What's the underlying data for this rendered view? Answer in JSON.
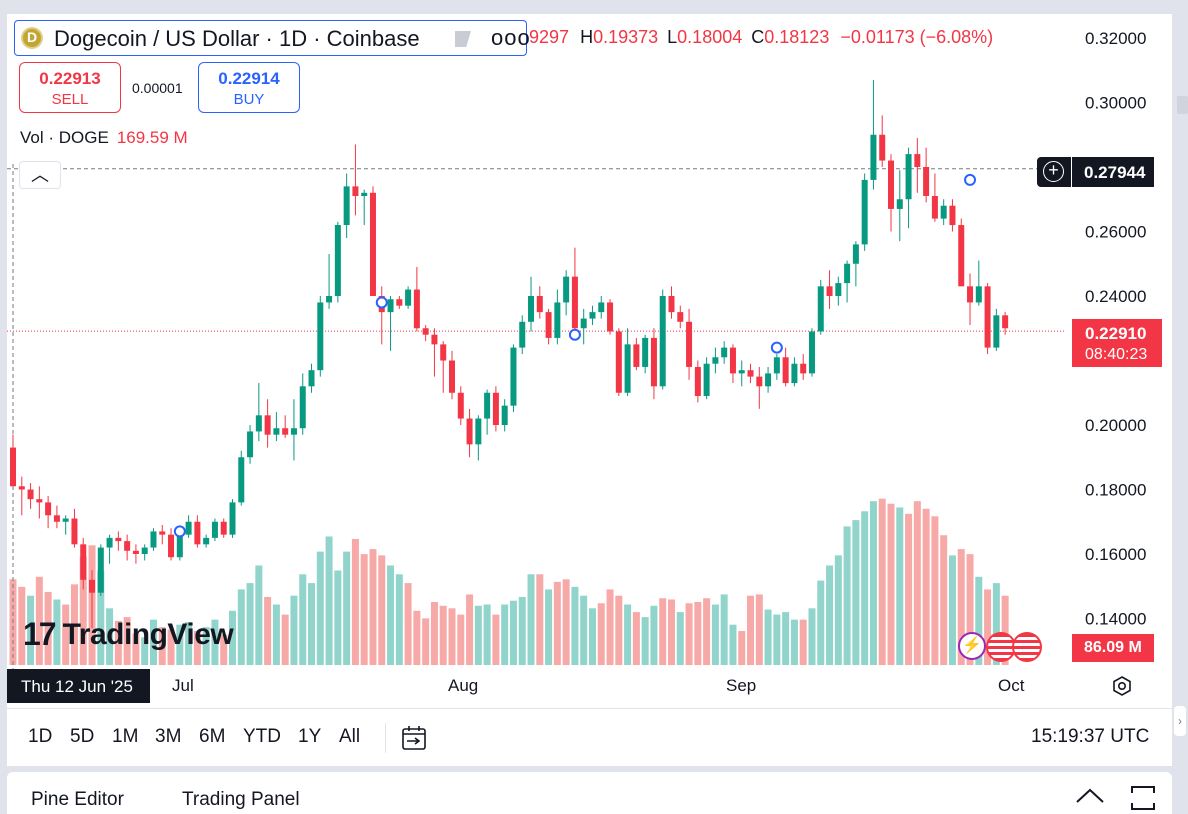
{
  "legend": {
    "symbol_title": "Dogecoin / US Dollar · 1D · Coinbase",
    "more_label": "ooo",
    "ohlc_open_fragment": "9297",
    "ohlc_high_key": "H",
    "ohlc_high": "0.19373",
    "ohlc_low_key": "L",
    "ohlc_low": "0.18004",
    "ohlc_close_key": "C",
    "ohlc_close": "0.18123",
    "change": "−0.01173 (−6.08%)"
  },
  "trade": {
    "sell_price": "0.22913",
    "sell_label": "SELL",
    "spread": "0.00001",
    "buy_price": "0.22914",
    "buy_label": "BUY"
  },
  "volume_legend": {
    "label": "Vol · DOGE",
    "value": "169.59 M"
  },
  "price_axis": {
    "ticks": [
      "0.32000",
      "0.30000",
      "0.26000",
      "0.24000",
      "0.20000",
      "0.18000",
      "0.16000",
      "0.14000"
    ],
    "crosshair_price": "0.27944",
    "last_price": "0.22910",
    "countdown": "08:40:23",
    "volume_tag": "86.09 M"
  },
  "time_axis": {
    "crosshair_date": "Thu 12 Jun '25",
    "labels": [
      "Jul",
      "Aug",
      "Sep",
      "Oct"
    ]
  },
  "watermark": {
    "brand": "TradingView",
    "mark": "17"
  },
  "timeframes": [
    "1D",
    "5D",
    "1M",
    "3M",
    "6M",
    "YTD",
    "1Y",
    "All"
  ],
  "clock": "15:19:37 UTC",
  "bottom_panel": {
    "pine_editor": "Pine Editor",
    "trading_panel": "Trading Panel"
  },
  "colors": {
    "up": "#089981",
    "down": "#f23645",
    "vol_up": "#91d4cc",
    "vol_down": "#f7a9a7",
    "accent": "#2962ff"
  },
  "chart_data": {
    "type": "candlestick",
    "symbol": "Dogecoin / US Dollar",
    "interval": "1D",
    "exchange": "Coinbase",
    "y_range": [
      0.128,
      0.326
    ],
    "candles": [
      {
        "o": 0.193,
        "h": 0.197,
        "l": 0.181,
        "c": 0.181
      },
      {
        "o": 0.181,
        "h": 0.184,
        "l": 0.172,
        "c": 0.18
      },
      {
        "o": 0.18,
        "h": 0.182,
        "l": 0.174,
        "c": 0.177
      },
      {
        "o": 0.177,
        "h": 0.181,
        "l": 0.171,
        "c": 0.176
      },
      {
        "o": 0.176,
        "h": 0.178,
        "l": 0.168,
        "c": 0.172
      },
      {
        "o": 0.172,
        "h": 0.175,
        "l": 0.168,
        "c": 0.17
      },
      {
        "o": 0.17,
        "h": 0.172,
        "l": 0.166,
        "c": 0.171
      },
      {
        "o": 0.171,
        "h": 0.174,
        "l": 0.162,
        "c": 0.163
      },
      {
        "o": 0.163,
        "h": 0.165,
        "l": 0.149,
        "c": 0.152
      },
      {
        "o": 0.152,
        "h": 0.155,
        "l": 0.137,
        "c": 0.148
      },
      {
        "o": 0.148,
        "h": 0.163,
        "l": 0.147,
        "c": 0.162
      },
      {
        "o": 0.162,
        "h": 0.166,
        "l": 0.157,
        "c": 0.165
      },
      {
        "o": 0.165,
        "h": 0.167,
        "l": 0.161,
        "c": 0.164
      },
      {
        "o": 0.164,
        "h": 0.166,
        "l": 0.158,
        "c": 0.161
      },
      {
        "o": 0.161,
        "h": 0.163,
        "l": 0.157,
        "c": 0.16
      },
      {
        "o": 0.16,
        "h": 0.163,
        "l": 0.158,
        "c": 0.162
      },
      {
        "o": 0.162,
        "h": 0.168,
        "l": 0.161,
        "c": 0.167
      },
      {
        "o": 0.167,
        "h": 0.169,
        "l": 0.163,
        "c": 0.166
      },
      {
        "o": 0.166,
        "h": 0.168,
        "l": 0.158,
        "c": 0.159
      },
      {
        "o": 0.159,
        "h": 0.167,
        "l": 0.158,
        "c": 0.166
      },
      {
        "o": 0.166,
        "h": 0.172,
        "l": 0.165,
        "c": 0.17
      },
      {
        "o": 0.17,
        "h": 0.172,
        "l": 0.162,
        "c": 0.163
      },
      {
        "o": 0.163,
        "h": 0.166,
        "l": 0.162,
        "c": 0.165
      },
      {
        "o": 0.165,
        "h": 0.171,
        "l": 0.164,
        "c": 0.17
      },
      {
        "o": 0.17,
        "h": 0.171,
        "l": 0.165,
        "c": 0.166
      },
      {
        "o": 0.166,
        "h": 0.177,
        "l": 0.165,
        "c": 0.176
      },
      {
        "o": 0.176,
        "h": 0.192,
        "l": 0.175,
        "c": 0.19
      },
      {
        "o": 0.19,
        "h": 0.2,
        "l": 0.188,
        "c": 0.198
      },
      {
        "o": 0.198,
        "h": 0.213,
        "l": 0.195,
        "c": 0.203
      },
      {
        "o": 0.203,
        "h": 0.208,
        "l": 0.193,
        "c": 0.197
      },
      {
        "o": 0.197,
        "h": 0.204,
        "l": 0.195,
        "c": 0.199
      },
      {
        "o": 0.199,
        "h": 0.203,
        "l": 0.196,
        "c": 0.197
      },
      {
        "o": 0.197,
        "h": 0.208,
        "l": 0.189,
        "c": 0.199
      },
      {
        "o": 0.199,
        "h": 0.216,
        "l": 0.197,
        "c": 0.212
      },
      {
        "o": 0.212,
        "h": 0.219,
        "l": 0.21,
        "c": 0.217
      },
      {
        "o": 0.217,
        "h": 0.24,
        "l": 0.215,
        "c": 0.238
      },
      {
        "o": 0.238,
        "h": 0.253,
        "l": 0.236,
        "c": 0.24
      },
      {
        "o": 0.24,
        "h": 0.263,
        "l": 0.238,
        "c": 0.262
      },
      {
        "o": 0.262,
        "h": 0.278,
        "l": 0.258,
        "c": 0.274
      },
      {
        "o": 0.274,
        "h": 0.287,
        "l": 0.265,
        "c": 0.271
      },
      {
        "o": 0.271,
        "h": 0.273,
        "l": 0.262,
        "c": 0.272
      },
      {
        "o": 0.272,
        "h": 0.274,
        "l": 0.24,
        "c": 0.24
      },
      {
        "o": 0.24,
        "h": 0.243,
        "l": 0.225,
        "c": 0.235
      },
      {
        "o": 0.235,
        "h": 0.24,
        "l": 0.223,
        "c": 0.239
      },
      {
        "o": 0.239,
        "h": 0.24,
        "l": 0.236,
        "c": 0.237
      },
      {
        "o": 0.237,
        "h": 0.243,
        "l": 0.236,
        "c": 0.242
      },
      {
        "o": 0.242,
        "h": 0.249,
        "l": 0.229,
        "c": 0.23
      },
      {
        "o": 0.23,
        "h": 0.231,
        "l": 0.226,
        "c": 0.228
      },
      {
        "o": 0.228,
        "h": 0.23,
        "l": 0.215,
        "c": 0.225
      },
      {
        "o": 0.225,
        "h": 0.226,
        "l": 0.21,
        "c": 0.22
      },
      {
        "o": 0.22,
        "h": 0.223,
        "l": 0.208,
        "c": 0.21
      },
      {
        "o": 0.21,
        "h": 0.212,
        "l": 0.2,
        "c": 0.202
      },
      {
        "o": 0.202,
        "h": 0.205,
        "l": 0.19,
        "c": 0.194
      },
      {
        "o": 0.194,
        "h": 0.203,
        "l": 0.189,
        "c": 0.202
      },
      {
        "o": 0.202,
        "h": 0.211,
        "l": 0.197,
        "c": 0.21
      },
      {
        "o": 0.21,
        "h": 0.212,
        "l": 0.198,
        "c": 0.2
      },
      {
        "o": 0.2,
        "h": 0.208,
        "l": 0.198,
        "c": 0.206
      },
      {
        "o": 0.206,
        "h": 0.225,
        "l": 0.204,
        "c": 0.224
      },
      {
        "o": 0.224,
        "h": 0.234,
        "l": 0.222,
        "c": 0.232
      },
      {
        "o": 0.232,
        "h": 0.246,
        "l": 0.229,
        "c": 0.24
      },
      {
        "o": 0.24,
        "h": 0.243,
        "l": 0.233,
        "c": 0.235
      },
      {
        "o": 0.235,
        "h": 0.236,
        "l": 0.225,
        "c": 0.227
      },
      {
        "o": 0.227,
        "h": 0.242,
        "l": 0.225,
        "c": 0.238
      },
      {
        "o": 0.238,
        "h": 0.248,
        "l": 0.234,
        "c": 0.246
      },
      {
        "o": 0.246,
        "h": 0.255,
        "l": 0.228,
        "c": 0.23
      },
      {
        "o": 0.23,
        "h": 0.236,
        "l": 0.225,
        "c": 0.233
      },
      {
        "o": 0.233,
        "h": 0.237,
        "l": 0.231,
        "c": 0.235
      },
      {
        "o": 0.235,
        "h": 0.24,
        "l": 0.233,
        "c": 0.238
      },
      {
        "o": 0.238,
        "h": 0.239,
        "l": 0.228,
        "c": 0.229
      },
      {
        "o": 0.229,
        "h": 0.23,
        "l": 0.209,
        "c": 0.21
      },
      {
        "o": 0.21,
        "h": 0.23,
        "l": 0.209,
        "c": 0.225
      },
      {
        "o": 0.225,
        "h": 0.227,
        "l": 0.217,
        "c": 0.218
      },
      {
        "o": 0.218,
        "h": 0.228,
        "l": 0.216,
        "c": 0.227
      },
      {
        "o": 0.227,
        "h": 0.23,
        "l": 0.208,
        "c": 0.212
      },
      {
        "o": 0.212,
        "h": 0.242,
        "l": 0.211,
        "c": 0.24
      },
      {
        "o": 0.24,
        "h": 0.243,
        "l": 0.233,
        "c": 0.235
      },
      {
        "o": 0.235,
        "h": 0.237,
        "l": 0.23,
        "c": 0.232
      },
      {
        "o": 0.232,
        "h": 0.236,
        "l": 0.214,
        "c": 0.218
      },
      {
        "o": 0.218,
        "h": 0.22,
        "l": 0.207,
        "c": 0.209
      },
      {
        "o": 0.209,
        "h": 0.221,
        "l": 0.208,
        "c": 0.219
      },
      {
        "o": 0.219,
        "h": 0.224,
        "l": 0.216,
        "c": 0.221
      },
      {
        "o": 0.221,
        "h": 0.226,
        "l": 0.219,
        "c": 0.224
      },
      {
        "o": 0.224,
        "h": 0.225,
        "l": 0.213,
        "c": 0.216
      },
      {
        "o": 0.216,
        "h": 0.22,
        "l": 0.212,
        "c": 0.217
      },
      {
        "o": 0.217,
        "h": 0.219,
        "l": 0.213,
        "c": 0.215
      },
      {
        "o": 0.215,
        "h": 0.218,
        "l": 0.205,
        "c": 0.212
      },
      {
        "o": 0.212,
        "h": 0.218,
        "l": 0.21,
        "c": 0.216
      },
      {
        "o": 0.216,
        "h": 0.222,
        "l": 0.214,
        "c": 0.221
      },
      {
        "o": 0.221,
        "h": 0.224,
        "l": 0.212,
        "c": 0.213
      },
      {
        "o": 0.213,
        "h": 0.221,
        "l": 0.212,
        "c": 0.219
      },
      {
        "o": 0.219,
        "h": 0.222,
        "l": 0.214,
        "c": 0.216
      },
      {
        "o": 0.216,
        "h": 0.23,
        "l": 0.215,
        "c": 0.229
      },
      {
        "o": 0.229,
        "h": 0.245,
        "l": 0.228,
        "c": 0.243
      },
      {
        "o": 0.243,
        "h": 0.248,
        "l": 0.236,
        "c": 0.24
      },
      {
        "o": 0.24,
        "h": 0.246,
        "l": 0.237,
        "c": 0.244
      },
      {
        "o": 0.244,
        "h": 0.251,
        "l": 0.238,
        "c": 0.25
      },
      {
        "o": 0.25,
        "h": 0.257,
        "l": 0.243,
        "c": 0.256
      },
      {
        "o": 0.256,
        "h": 0.278,
        "l": 0.254,
        "c": 0.276
      },
      {
        "o": 0.276,
        "h": 0.307,
        "l": 0.273,
        "c": 0.29
      },
      {
        "o": 0.29,
        "h": 0.296,
        "l": 0.28,
        "c": 0.282
      },
      {
        "o": 0.282,
        "h": 0.284,
        "l": 0.26,
        "c": 0.267
      },
      {
        "o": 0.267,
        "h": 0.279,
        "l": 0.257,
        "c": 0.27
      },
      {
        "o": 0.27,
        "h": 0.286,
        "l": 0.261,
        "c": 0.284
      },
      {
        "o": 0.284,
        "h": 0.289,
        "l": 0.272,
        "c": 0.28
      },
      {
        "o": 0.28,
        "h": 0.286,
        "l": 0.269,
        "c": 0.271
      },
      {
        "o": 0.271,
        "h": 0.278,
        "l": 0.263,
        "c": 0.264
      },
      {
        "o": 0.264,
        "h": 0.27,
        "l": 0.262,
        "c": 0.268
      },
      {
        "o": 0.268,
        "h": 0.27,
        "l": 0.26,
        "c": 0.262
      },
      {
        "o": 0.262,
        "h": 0.264,
        "l": 0.243,
        "c": 0.243
      },
      {
        "o": 0.243,
        "h": 0.247,
        "l": 0.231,
        "c": 0.238
      },
      {
        "o": 0.238,
        "h": 0.251,
        "l": 0.237,
        "c": 0.243
      },
      {
        "o": 0.243,
        "h": 0.244,
        "l": 0.222,
        "c": 0.224
      },
      {
        "o": 0.224,
        "h": 0.236,
        "l": 0.223,
        "c": 0.234
      },
      {
        "o": 0.234,
        "h": 0.235,
        "l": 0.228,
        "c": 0.23
      }
    ],
    "volumes": [
      {
        "v": 0.68,
        "up": false
      },
      {
        "v": 0.62,
        "up": false
      },
      {
        "v": 0.55,
        "up": true
      },
      {
        "v": 0.7,
        "up": false
      },
      {
        "v": 0.58,
        "up": false
      },
      {
        "v": 0.52,
        "up": true
      },
      {
        "v": 0.48,
        "up": false
      },
      {
        "v": 0.64,
        "up": false
      },
      {
        "v": 0.86,
        "up": false
      },
      {
        "v": 0.95,
        "up": false
      },
      {
        "v": 0.75,
        "up": true
      },
      {
        "v": 0.45,
        "up": true
      },
      {
        "v": 0.35,
        "up": false
      },
      {
        "v": 0.38,
        "up": false
      },
      {
        "v": 0.25,
        "up": false
      },
      {
        "v": 0.22,
        "up": true
      },
      {
        "v": 0.36,
        "up": true
      },
      {
        "v": 0.3,
        "up": false
      },
      {
        "v": 0.28,
        "up": false
      },
      {
        "v": 0.32,
        "up": true
      },
      {
        "v": 0.34,
        "up": true
      },
      {
        "v": 0.27,
        "up": false
      },
      {
        "v": 0.3,
        "up": true
      },
      {
        "v": 0.36,
        "up": true
      },
      {
        "v": 0.24,
        "up": false
      },
      {
        "v": 0.43,
        "up": true
      },
      {
        "v": 0.6,
        "up": true
      },
      {
        "v": 0.65,
        "up": true
      },
      {
        "v": 0.79,
        "up": true
      },
      {
        "v": 0.54,
        "up": false
      },
      {
        "v": 0.48,
        "up": true
      },
      {
        "v": 0.4,
        "up": false
      },
      {
        "v": 0.55,
        "up": true
      },
      {
        "v": 0.72,
        "up": true
      },
      {
        "v": 0.65,
        "up": true
      },
      {
        "v": 0.9,
        "up": true
      },
      {
        "v": 1.02,
        "up": true
      },
      {
        "v": 0.75,
        "up": true
      },
      {
        "v": 0.9,
        "up": true
      },
      {
        "v": 1.0,
        "up": false
      },
      {
        "v": 0.88,
        "up": false
      },
      {
        "v": 0.92,
        "up": false
      },
      {
        "v": 0.87,
        "up": false
      },
      {
        "v": 0.79,
        "up": true
      },
      {
        "v": 0.72,
        "up": true
      },
      {
        "v": 0.65,
        "up": false
      },
      {
        "v": 0.43,
        "up": false
      },
      {
        "v": 0.37,
        "up": false
      },
      {
        "v": 0.5,
        "up": false
      },
      {
        "v": 0.47,
        "up": false
      },
      {
        "v": 0.45,
        "up": false
      },
      {
        "v": 0.4,
        "up": false
      },
      {
        "v": 0.56,
        "up": false
      },
      {
        "v": 0.47,
        "up": true
      },
      {
        "v": 0.48,
        "up": true
      },
      {
        "v": 0.4,
        "up": false
      },
      {
        "v": 0.48,
        "up": true
      },
      {
        "v": 0.51,
        "up": true
      },
      {
        "v": 0.54,
        "up": true
      },
      {
        "v": 0.72,
        "up": true
      },
      {
        "v": 0.72,
        "up": false
      },
      {
        "v": 0.6,
        "up": true
      },
      {
        "v": 0.66,
        "up": false
      },
      {
        "v": 0.68,
        "up": false
      },
      {
        "v": 0.62,
        "up": true
      },
      {
        "v": 0.55,
        "up": true
      },
      {
        "v": 0.45,
        "up": true
      },
      {
        "v": 0.49,
        "up": false
      },
      {
        "v": 0.6,
        "up": false
      },
      {
        "v": 0.55,
        "up": false
      },
      {
        "v": 0.48,
        "up": true
      },
      {
        "v": 0.42,
        "up": false
      },
      {
        "v": 0.38,
        "up": true
      },
      {
        "v": 0.47,
        "up": true
      },
      {
        "v": 0.53,
        "up": false
      },
      {
        "v": 0.52,
        "up": false
      },
      {
        "v": 0.42,
        "up": true
      },
      {
        "v": 0.49,
        "up": false
      },
      {
        "v": 0.5,
        "up": false
      },
      {
        "v": 0.53,
        "up": false
      },
      {
        "v": 0.48,
        "up": true
      },
      {
        "v": 0.56,
        "up": true
      },
      {
        "v": 0.32,
        "up": true
      },
      {
        "v": 0.27,
        "up": false
      },
      {
        "v": 0.55,
        "up": false
      },
      {
        "v": 0.56,
        "up": false
      },
      {
        "v": 0.44,
        "up": true
      },
      {
        "v": 0.4,
        "up": true
      },
      {
        "v": 0.42,
        "up": true
      },
      {
        "v": 0.36,
        "up": true
      },
      {
        "v": 0.36,
        "up": false
      },
      {
        "v": 0.45,
        "up": true
      },
      {
        "v": 0.67,
        "up": true
      },
      {
        "v": 0.79,
        "up": true
      },
      {
        "v": 0.87,
        "up": true
      },
      {
        "v": 1.1,
        "up": true
      },
      {
        "v": 1.15,
        "up": true
      },
      {
        "v": 1.22,
        "up": true
      },
      {
        "v": 1.3,
        "up": true
      },
      {
        "v": 1.32,
        "up": false
      },
      {
        "v": 1.28,
        "up": false
      },
      {
        "v": 1.25,
        "up": true
      },
      {
        "v": 1.2,
        "up": false
      },
      {
        "v": 1.3,
        "up": false
      },
      {
        "v": 1.24,
        "up": false
      },
      {
        "v": 1.18,
        "up": false
      },
      {
        "v": 1.03,
        "up": false
      },
      {
        "v": 0.87,
        "up": true
      },
      {
        "v": 0.92,
        "up": false
      },
      {
        "v": 0.88,
        "up": false
      },
      {
        "v": 0.7,
        "up": true
      },
      {
        "v": 0.6,
        "up": false
      },
      {
        "v": 0.65,
        "up": true
      },
      {
        "v": 0.55,
        "up": false
      }
    ],
    "markers": [
      {
        "index": 19,
        "y": 0.167
      },
      {
        "index": 42,
        "y": 0.238
      },
      {
        "index": 64,
        "y": 0.228
      },
      {
        "index": 87,
        "y": 0.224
      },
      {
        "index": 109,
        "y": 0.276
      }
    ],
    "crosshair_price": 0.27944,
    "last_price": 0.2291
  }
}
